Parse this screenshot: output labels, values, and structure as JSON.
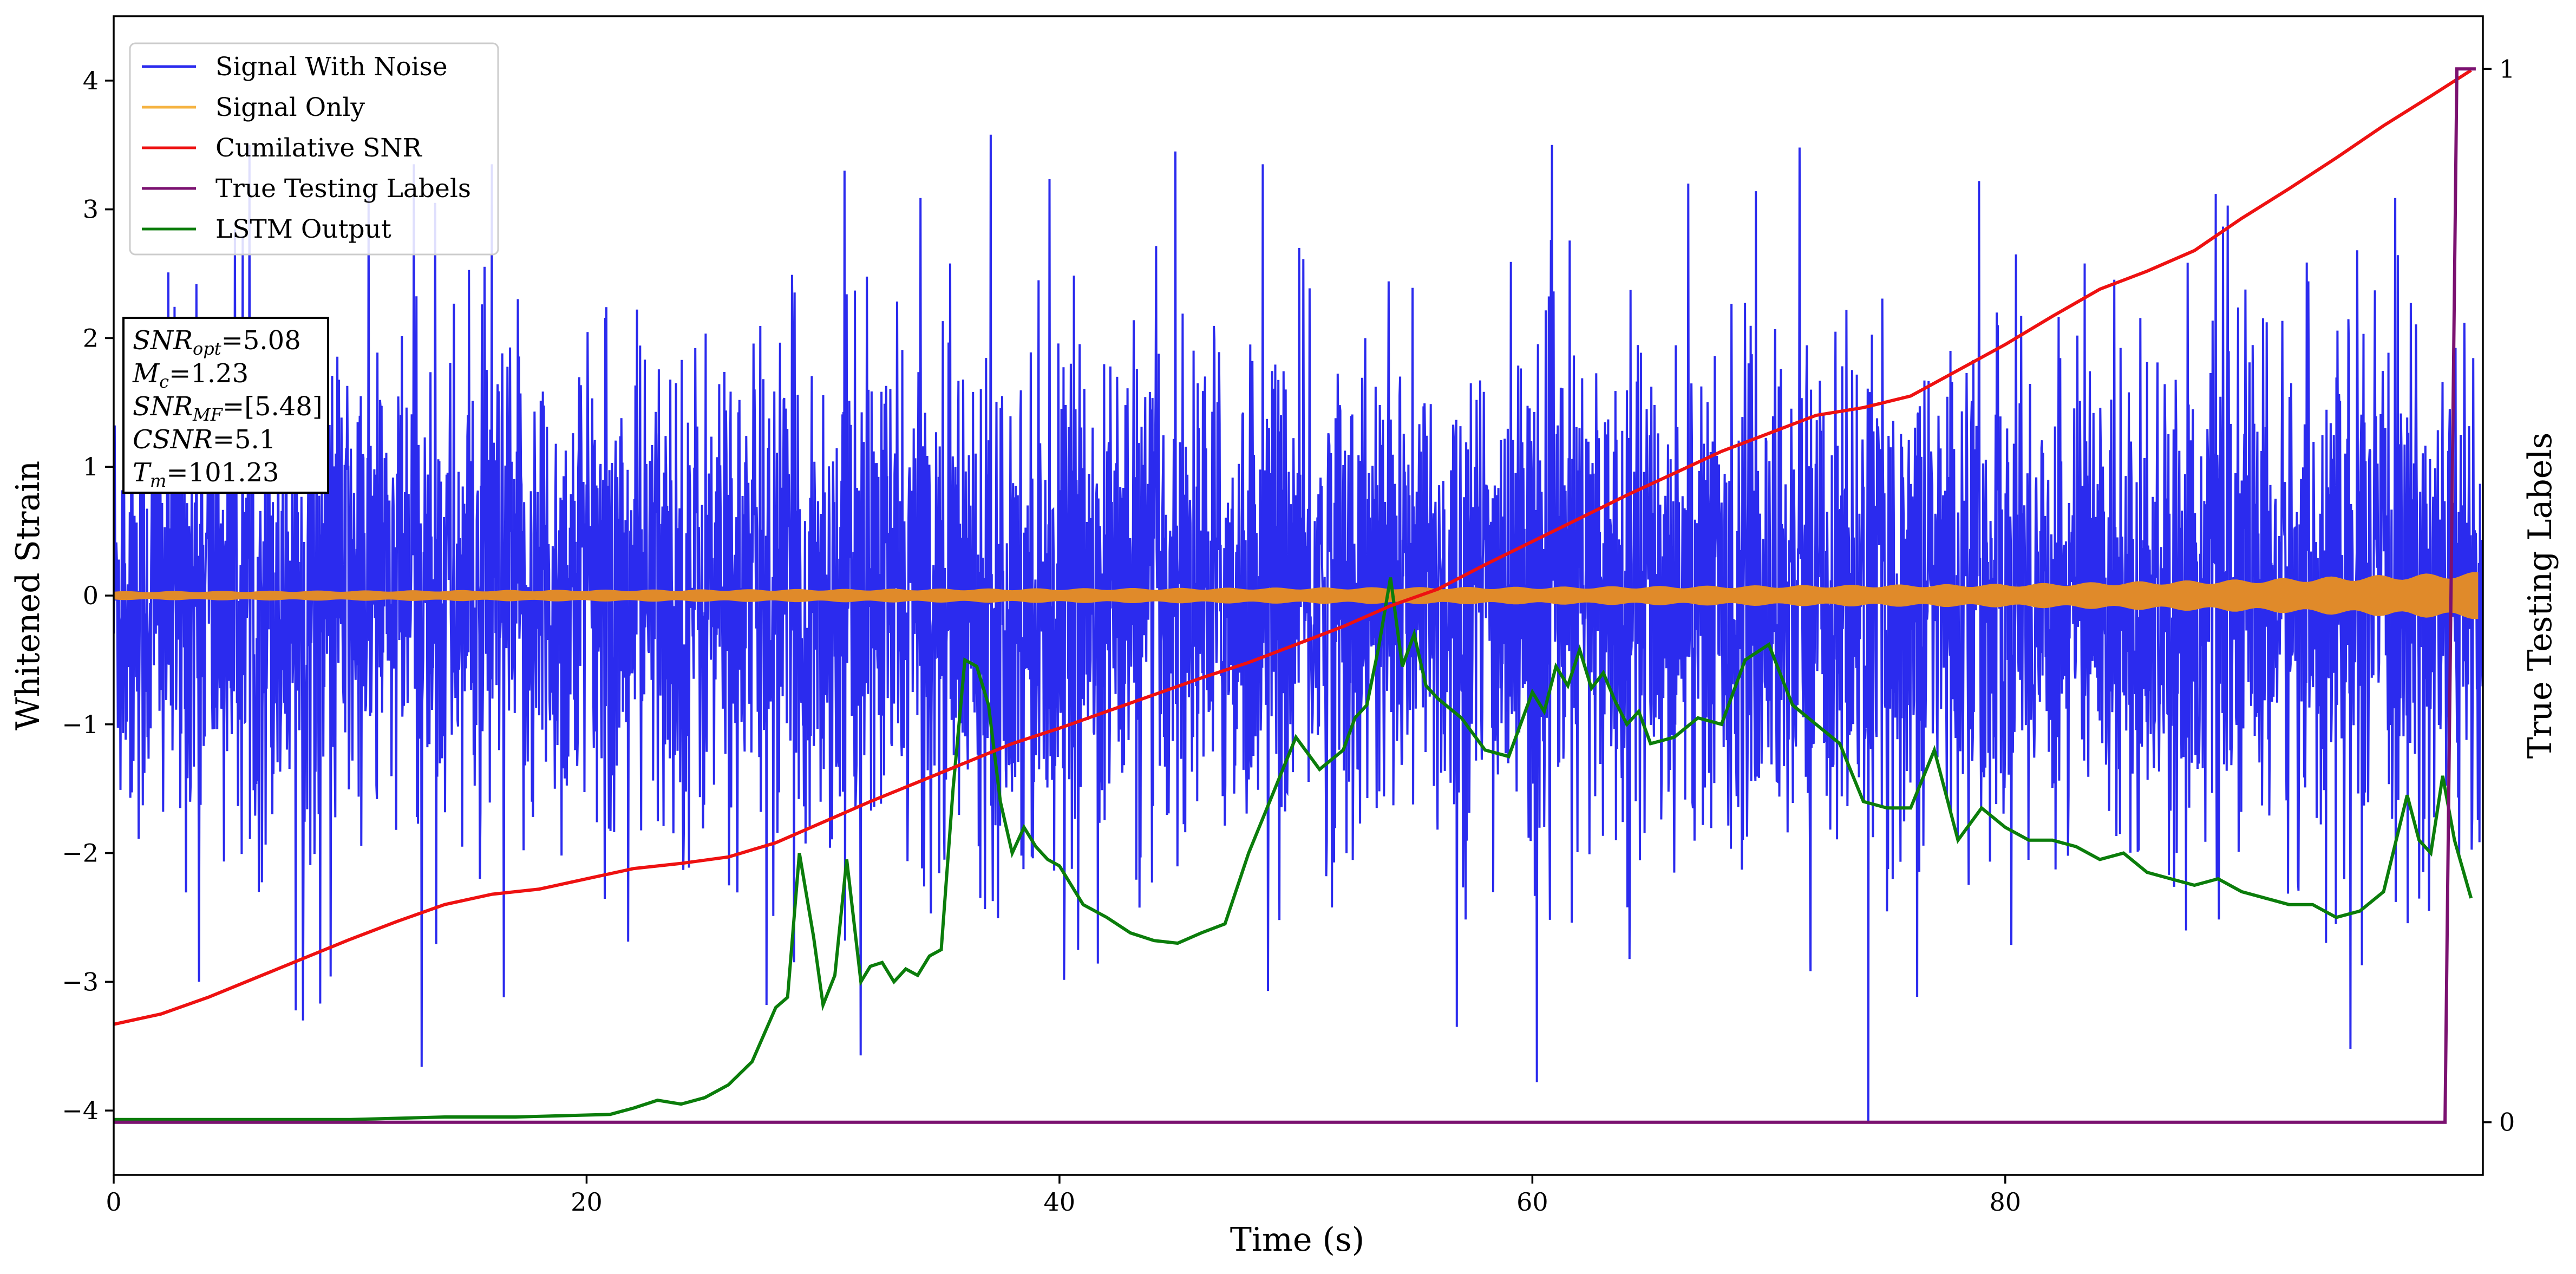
{
  "chart_data": {
    "type": "line",
    "xlabel": "Time (s)",
    "ylabel": "Whitened Strain",
    "y2label": "True Testing Labels",
    "xlim": [
      0,
      100.2
    ],
    "ylim": [
      -4.5,
      4.5
    ],
    "y2lim": [
      -0.05,
      1.05
    ],
    "x_ticks": [
      0,
      20,
      40,
      60,
      80
    ],
    "y_ticks": [
      -4,
      -3,
      -2,
      -1,
      0,
      1,
      2,
      3,
      4
    ],
    "y2_ticks": [
      0,
      1
    ],
    "legend_position": "top-left",
    "colors": {
      "noise": "#2b2bee",
      "signal": "#e08a2a",
      "csnr": "#ee1111",
      "labels": "#7b1170",
      "lstm": "#0b7d0b"
    },
    "series": [
      {
        "name": "Signal With Noise",
        "style": "dense noise, range approx -4.1 to 3.6",
        "noise_std": 0.95,
        "spikes": [
          {
            "x": 37.1,
            "y": 3.58
          },
          {
            "x": 56.8,
            "y": 3.52
          },
          {
            "x": 44.9,
            "y": 3.45
          },
          {
            "x": 12.7,
            "y": 3.35
          },
          {
            "x": 13.6,
            "y": 3.05
          },
          {
            "x": 16.0,
            "y": 3.35
          },
          {
            "x": 30.9,
            "y": 3.3
          },
          {
            "x": 48.6,
            "y": 3.35
          },
          {
            "x": 71.3,
            "y": 3.48
          },
          {
            "x": 66.6,
            "y": 3.2
          },
          {
            "x": 78.9,
            "y": 3.22
          },
          {
            "x": 88.9,
            "y": 3.12
          },
          {
            "x": 74.2,
            "y": -4.1
          },
          {
            "x": 60.2,
            "y": -3.78
          },
          {
            "x": 94.6,
            "y": -3.52
          },
          {
            "x": 56.8,
            "y": -3.35
          },
          {
            "x": 8.0,
            "y": -3.3
          },
          {
            "x": 27.6,
            "y": -3.18
          },
          {
            "x": 3.6,
            "y": -3.0
          },
          {
            "x": 16.5,
            "y": -3.12
          }
        ]
      },
      {
        "name": "Signal Only",
        "style": "oscillation envelope",
        "envelope_x": [
          0,
          20,
          40,
          60,
          80,
          90,
          100
        ],
        "envelope_amp": [
          0.03,
          0.04,
          0.05,
          0.06,
          0.08,
          0.11,
          0.16
        ]
      },
      {
        "name": "Cumilative SNR",
        "x": [
          0,
          2,
          4,
          6,
          8,
          10,
          12,
          14,
          16,
          18,
          20,
          22,
          24,
          26,
          28,
          30,
          32,
          34,
          36,
          38,
          40,
          42,
          44,
          46,
          48,
          50,
          52,
          54,
          56,
          58,
          60,
          62,
          64,
          66,
          68,
          70,
          72,
          74,
          76,
          78,
          80,
          82,
          84,
          86,
          88,
          90,
          92,
          94,
          96,
          98,
          99.7
        ],
        "y": [
          -3.33,
          -3.25,
          -3.12,
          -2.97,
          -2.82,
          -2.67,
          -2.53,
          -2.4,
          -2.32,
          -2.28,
          -2.2,
          -2.12,
          -2.08,
          -2.03,
          -1.92,
          -1.76,
          -1.6,
          -1.45,
          -1.3,
          -1.15,
          -1.03,
          -0.9,
          -0.77,
          -0.64,
          -0.52,
          -0.38,
          -0.24,
          -0.08,
          0.05,
          0.24,
          0.42,
          0.6,
          0.78,
          0.95,
          1.12,
          1.26,
          1.4,
          1.46,
          1.55,
          1.75,
          1.95,
          2.17,
          2.38,
          2.52,
          2.68,
          2.93,
          3.16,
          3.4,
          3.65,
          3.88,
          4.08
        ]
      },
      {
        "name": "True Testing Labels",
        "axis": "y2",
        "x": [
          0,
          98.6,
          99.1,
          99.9
        ],
        "y": [
          0,
          0,
          1,
          1
        ]
      },
      {
        "name": "LSTM Output",
        "x": [
          0,
          10,
          14,
          17,
          19,
          21,
          22,
          23,
          24,
          25,
          26,
          27,
          28,
          28.5,
          29,
          29.6,
          30,
          30.5,
          31,
          31.6,
          32,
          32.5,
          33,
          33.5,
          34,
          34.5,
          35,
          35.5,
          36,
          36.5,
          37,
          37.5,
          38,
          38.5,
          39,
          39.5,
          40,
          41,
          42,
          43,
          44,
          45,
          46,
          47,
          48,
          49,
          50,
          51,
          52,
          52.5,
          53,
          53.5,
          54,
          54.5,
          55,
          55.5,
          56,
          57,
          58,
          59,
          60,
          60.5,
          61,
          61.5,
          62,
          62.5,
          63,
          63.5,
          64,
          64.5,
          65,
          66,
          67,
          68,
          69,
          70,
          71,
          72,
          73,
          74,
          75,
          76,
          77,
          78,
          79,
          80,
          81,
          82,
          83,
          84,
          85,
          86,
          87,
          88,
          89,
          90,
          91,
          92,
          93,
          94,
          95,
          96,
          97,
          97.5,
          98,
          98.5,
          99,
          99.7
        ],
        "y": [
          -4.07,
          -4.07,
          -4.05,
          -4.05,
          -4.04,
          -4.03,
          -3.98,
          -3.92,
          -3.95,
          -3.9,
          -3.8,
          -3.62,
          -3.2,
          -3.12,
          -2.0,
          -2.65,
          -3.18,
          -2.95,
          -2.05,
          -3.0,
          -2.88,
          -2.85,
          -3.0,
          -2.9,
          -2.95,
          -2.8,
          -2.75,
          -1.5,
          -0.5,
          -0.55,
          -0.85,
          -1.6,
          -2.0,
          -1.8,
          -1.95,
          -2.05,
          -2.1,
          -2.4,
          -2.5,
          -2.62,
          -2.68,
          -2.7,
          -2.62,
          -2.55,
          -2.0,
          -1.55,
          -1.1,
          -1.35,
          -1.2,
          -0.95,
          -0.85,
          -0.4,
          0.14,
          -0.55,
          -0.3,
          -0.7,
          -0.8,
          -0.95,
          -1.2,
          -1.25,
          -0.75,
          -0.9,
          -0.55,
          -0.7,
          -0.42,
          -0.72,
          -0.6,
          -0.82,
          -1.0,
          -0.9,
          -1.15,
          -1.1,
          -0.95,
          -1.0,
          -0.5,
          -0.38,
          -0.85,
          -1.0,
          -1.15,
          -1.6,
          -1.65,
          -1.65,
          -1.2,
          -1.9,
          -1.65,
          -1.8,
          -1.9,
          -1.9,
          -1.95,
          -2.05,
          -2.0,
          -2.15,
          -2.2,
          -2.25,
          -2.2,
          -2.3,
          -2.35,
          -2.4,
          -2.4,
          -2.5,
          -2.45,
          -2.3,
          -1.55,
          -1.9,
          -2.0,
          -1.4,
          -1.9,
          -2.35
        ]
      }
    ],
    "annotation_lines": [
      {
        "var": "SNR",
        "sub": "opt",
        "value": "=5.08"
      },
      {
        "var": "M",
        "sub": "c",
        "value": "=1.23"
      },
      {
        "var": "SNR",
        "sub": "MF",
        "value": "=[5.48]"
      },
      {
        "var": "CSNR",
        "sub": "",
        "value": "=5.1"
      },
      {
        "var": "T",
        "sub": "m",
        "value": "=101.23"
      }
    ]
  }
}
